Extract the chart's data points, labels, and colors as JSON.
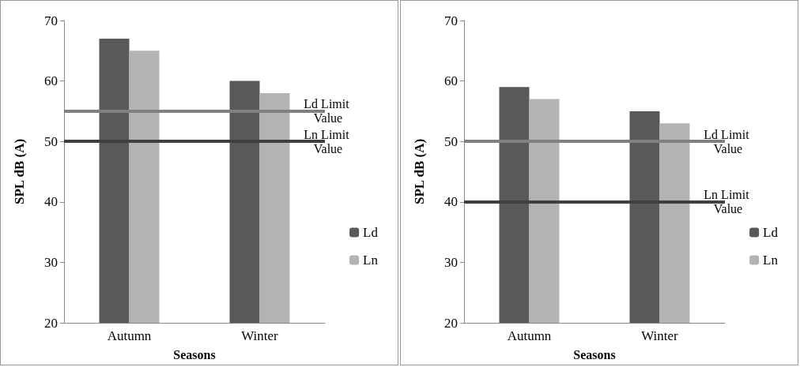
{
  "chart_data": [
    {
      "type": "bar",
      "xlabel": "Seasons",
      "ylabel": "SPL dB (A)",
      "categories": [
        "Autumn",
        "Winter"
      ],
      "series": [
        {
          "name": "Ld",
          "color": "#595959",
          "values": [
            67,
            60
          ]
        },
        {
          "name": "Ln",
          "color": "#b3b3b3",
          "values": [
            65,
            58
          ]
        }
      ],
      "ylim": [
        20,
        70
      ],
      "yticks": [
        20,
        30,
        40,
        50,
        60,
        70
      ],
      "grid": false,
      "legend": "right",
      "ref_lines": [
        {
          "axis": "y",
          "value": 55,
          "label": "Ld Limit Value",
          "color": "#808080"
        },
        {
          "axis": "y",
          "value": 50,
          "label": "Ln Limit Value",
          "color": "#404040"
        }
      ]
    },
    {
      "type": "bar",
      "xlabel": "Seasons",
      "ylabel": "SPL dB (A)",
      "categories": [
        "Autumn",
        "Winter"
      ],
      "series": [
        {
          "name": "Ld",
          "color": "#595959",
          "values": [
            59,
            55
          ]
        },
        {
          "name": "Ln",
          "color": "#b3b3b3",
          "values": [
            57,
            53
          ]
        }
      ],
      "ylim": [
        20,
        70
      ],
      "yticks": [
        20,
        30,
        40,
        50,
        60,
        70
      ],
      "grid": false,
      "legend": "right",
      "ref_lines": [
        {
          "axis": "y",
          "value": 50,
          "label": "Ld Limit Value",
          "color": "#808080"
        },
        {
          "axis": "y",
          "value": 40,
          "label": "Ln Limit Value",
          "color": "#404040"
        }
      ]
    }
  ]
}
